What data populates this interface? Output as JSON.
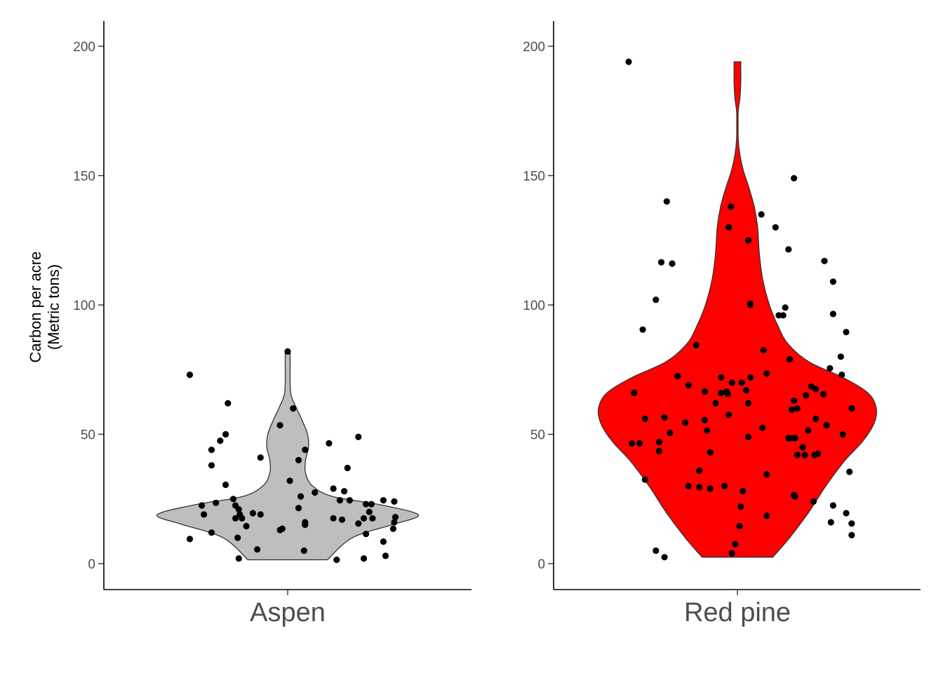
{
  "chart_data": [
    {
      "type": "violin",
      "category": "Aspen",
      "fill": "#bebebe",
      "ylabel": [
        "Carbon per acre",
        "(Metric tons)"
      ],
      "ylim": [
        -10,
        210
      ],
      "yticks": [
        0,
        50,
        100,
        150,
        200
      ],
      "range": [
        1.5,
        82
      ],
      "density": [
        [
          1.5,
          0.4
        ],
        [
          10,
          0.65
        ],
        [
          15,
          1.05
        ],
        [
          18,
          1.3
        ],
        [
          20,
          1.25
        ],
        [
          23,
          0.9
        ],
        [
          26,
          0.45
        ],
        [
          30,
          0.25
        ],
        [
          35,
          0.18
        ],
        [
          40,
          0.18
        ],
        [
          45,
          0.21
        ],
        [
          50,
          0.2
        ],
        [
          55,
          0.15
        ],
        [
          60,
          0.09
        ],
        [
          65,
          0.035
        ],
        [
          70,
          0.025
        ],
        [
          76,
          0.025
        ],
        [
          82,
          0.025
        ]
      ],
      "points": [
        [
          -0.9,
          73
        ],
        [
          -0.9,
          9.5
        ],
        [
          -0.79,
          22.5
        ],
        [
          -0.77,
          19
        ],
        [
          -0.7,
          44
        ],
        [
          -0.7,
          38
        ],
        [
          -0.7,
          12
        ],
        [
          -0.66,
          23.5
        ],
        [
          -0.62,
          47.5
        ],
        [
          -0.55,
          62
        ],
        [
          -0.57,
          50
        ],
        [
          -0.57,
          30.5
        ],
        [
          -0.5,
          25
        ],
        [
          -0.48,
          17.5
        ],
        [
          -0.48,
          22.5
        ],
        [
          -0.45,
          21
        ],
        [
          -0.44,
          19
        ],
        [
          -0.46,
          10
        ],
        [
          -0.45,
          2
        ],
        [
          -0.42,
          17.5
        ],
        [
          -0.38,
          14.5
        ],
        [
          -0.32,
          19.5
        ],
        [
          -0.28,
          5.5
        ],
        [
          -0.25,
          41
        ],
        [
          -0.25,
          19
        ],
        [
          -0.07,
          53.5
        ],
        [
          -0.07,
          13
        ],
        [
          -0.05,
          13.5
        ],
        [
          0.0,
          82
        ],
        [
          0.02,
          32
        ],
        [
          0.05,
          60
        ],
        [
          0.1,
          21.5
        ],
        [
          0.12,
          26
        ],
        [
          0.1,
          40
        ],
        [
          0.16,
          44
        ],
        [
          0.16,
          16
        ],
        [
          0.16,
          15
        ],
        [
          0.15,
          5
        ],
        [
          0.25,
          27.5
        ],
        [
          0.38,
          46.5
        ],
        [
          0.42,
          29
        ],
        [
          0.42,
          17.5
        ],
        [
          0.45,
          1.5
        ],
        [
          0.48,
          24.5
        ],
        [
          0.5,
          17
        ],
        [
          0.52,
          28
        ],
        [
          0.57,
          24.5
        ],
        [
          0.55,
          37
        ],
        [
          0.65,
          49
        ],
        [
          0.65,
          15.5
        ],
        [
          0.7,
          17.5
        ],
        [
          0.72,
          23
        ],
        [
          0.72,
          11.5
        ],
        [
          0.7,
          2
        ],
        [
          0.75,
          20
        ],
        [
          0.77,
          23
        ],
        [
          0.78,
          17.5
        ],
        [
          0.88,
          24.5
        ],
        [
          0.88,
          8.5
        ],
        [
          0.9,
          3
        ],
        [
          0.97,
          13.5
        ],
        [
          0.98,
          16
        ],
        [
          0.99,
          18
        ],
        [
          0.98,
          24
        ]
      ]
    },
    {
      "type": "violin",
      "category": "Red pine",
      "fill": "#ff0000",
      "ylim": [
        -10,
        210
      ],
      "yticks": [
        0,
        50,
        100,
        150,
        200
      ],
      "range": [
        2.5,
        194
      ],
      "density": [
        [
          2.5,
          0.42
        ],
        [
          10,
          0.62
        ],
        [
          20,
          0.85
        ],
        [
          30,
          1.05
        ],
        [
          40,
          1.28
        ],
        [
          47,
          1.48
        ],
        [
          54,
          1.62
        ],
        [
          60,
          1.65
        ],
        [
          66,
          1.55
        ],
        [
          72,
          1.25
        ],
        [
          78,
          0.85
        ],
        [
          85,
          0.6
        ],
        [
          92,
          0.48
        ],
        [
          100,
          0.38
        ],
        [
          110,
          0.3
        ],
        [
          120,
          0.26
        ],
        [
          130,
          0.24
        ],
        [
          138,
          0.2
        ],
        [
          145,
          0.14
        ],
        [
          152,
          0.07
        ],
        [
          158,
          0.03
        ],
        [
          164,
          0.01
        ],
        [
          170,
          0.008
        ],
        [
          175,
          0.01
        ],
        [
          180,
          0.03
        ],
        [
          186,
          0.04
        ],
        [
          190,
          0.04
        ],
        [
          194,
          0.04
        ]
      ],
      "points": [
        [
          -1.0,
          194
        ],
        [
          -0.87,
          90.5
        ],
        [
          -0.9,
          46.5
        ],
        [
          -0.97,
          46.5
        ],
        [
          -0.95,
          66
        ],
        [
          -0.85,
          56
        ],
        [
          -0.85,
          32.5
        ],
        [
          -0.65,
          140
        ],
        [
          -0.7,
          116.5
        ],
        [
          -0.6,
          116
        ],
        [
          -0.75,
          102
        ],
        [
          -0.72,
          47
        ],
        [
          -0.72,
          43.5
        ],
        [
          -0.67,
          56.5
        ],
        [
          -0.62,
          50.5
        ],
        [
          -0.55,
          72.5
        ],
        [
          -0.48,
          54.5
        ],
        [
          -0.45,
          69
        ],
        [
          -0.45,
          30
        ],
        [
          -0.75,
          5
        ],
        [
          -0.67,
          2.5
        ],
        [
          -0.38,
          84.5
        ],
        [
          -0.35,
          36
        ],
        [
          -0.35,
          29.5
        ],
        [
          -0.3,
          55.5
        ],
        [
          -0.3,
          66.5
        ],
        [
          -0.28,
          51.5
        ],
        [
          -0.25,
          43
        ],
        [
          -0.25,
          29
        ],
        [
          -0.2,
          62
        ],
        [
          -0.15,
          66
        ],
        [
          -0.15,
          72
        ],
        [
          -0.1,
          66.5
        ],
        [
          -0.12,
          30
        ],
        [
          -0.06,
          138
        ],
        [
          -0.08,
          130
        ],
        [
          -0.09,
          65.5
        ],
        [
          -0.08,
          57.5
        ],
        [
          -0.05,
          70
        ],
        [
          -0.05,
          4
        ],
        [
          -0.02,
          7.5
        ],
        [
          0.02,
          14.5
        ],
        [
          0.03,
          22
        ],
        [
          0.04,
          70
        ],
        [
          0.05,
          28
        ],
        [
          0.08,
          67
        ],
        [
          0.1,
          125
        ],
        [
          0.1,
          62
        ],
        [
          0.12,
          100.5
        ],
        [
          0.12,
          100
        ],
        [
          0.12,
          72
        ],
        [
          0.1,
          49
        ],
        [
          0.22,
          135
        ],
        [
          0.24,
          82.5
        ],
        [
          0.23,
          52.5
        ],
        [
          0.27,
          73.5
        ],
        [
          0.27,
          34.5
        ],
        [
          0.27,
          18.5
        ],
        [
          0.35,
          130
        ],
        [
          0.38,
          96
        ],
        [
          0.44,
          99
        ],
        [
          0.47,
          121.5
        ],
        [
          0.42,
          96
        ],
        [
          0.52,
          149
        ],
        [
          0.48,
          79
        ],
        [
          0.52,
          63
        ],
        [
          0.5,
          59.5
        ],
        [
          0.5,
          48.5
        ],
        [
          0.55,
          60
        ],
        [
          0.47,
          48.5
        ],
        [
          0.53,
          48.5
        ],
        [
          0.53,
          26
        ],
        [
          0.52,
          26.5
        ],
        [
          0.55,
          42
        ],
        [
          0.6,
          45
        ],
        [
          0.62,
          42
        ],
        [
          0.63,
          65
        ],
        [
          0.65,
          51.5
        ],
        [
          0.68,
          68.5
        ],
        [
          0.72,
          67.5
        ],
        [
          0.71,
          42
        ],
        [
          0.74,
          42.5
        ],
        [
          0.7,
          24
        ],
        [
          0.79,
          65.5
        ],
        [
          0.8,
          117
        ],
        [
          0.72,
          56
        ],
        [
          0.82,
          53.5
        ],
        [
          0.85,
          75.5
        ],
        [
          0.88,
          109
        ],
        [
          0.88,
          96.5
        ],
        [
          0.86,
          16
        ],
        [
          0.88,
          22.5
        ],
        [
          0.95,
          80
        ],
        [
          0.96,
          73
        ],
        [
          0.97,
          50
        ],
        [
          1.0,
          89.5
        ],
        [
          1.0,
          19.5
        ],
        [
          1.05,
          60
        ],
        [
          1.03,
          35.5
        ],
        [
          1.05,
          15.5
        ],
        [
          1.05,
          11
        ]
      ]
    }
  ]
}
